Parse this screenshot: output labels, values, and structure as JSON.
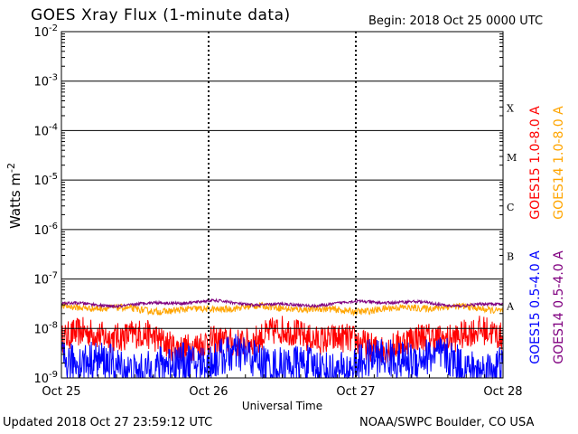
{
  "header": {
    "title": "GOES Xray Flux (1-minute data)",
    "begin": "Begin:  2018 Oct 25 0000 UTC"
  },
  "footer": {
    "updated": "Updated 2018 Oct 27 23:59:12 UTC",
    "credit": "NOAA/SWPC Boulder, CO USA"
  },
  "chart_data": {
    "type": "line",
    "title": "GOES Xray Flux (1-minute data)",
    "xlabel": "Universal Time",
    "ylabel": "Watts m",
    "ylabel_superscript": "-2",
    "yscale": "log",
    "ylim": [
      1e-09,
      0.01
    ],
    "y_ticks": [
      {
        "value": 0.01,
        "base": "10",
        "exp": "-2"
      },
      {
        "value": 0.001,
        "base": "10",
        "exp": "-3"
      },
      {
        "value": 0.0001,
        "base": "10",
        "exp": "-4"
      },
      {
        "value": 1e-05,
        "base": "10",
        "exp": "-5"
      },
      {
        "value": 1e-06,
        "base": "10",
        "exp": "-6"
      },
      {
        "value": 1e-07,
        "base": "10",
        "exp": "-7"
      },
      {
        "value": 1e-08,
        "base": "10",
        "exp": "-8"
      },
      {
        "value": 1e-09,
        "base": "10",
        "exp": "-9"
      }
    ],
    "x_ticks": [
      "Oct 25",
      "Oct 26",
      "Oct 27",
      "Oct 28"
    ],
    "xlim_days": [
      0,
      3
    ],
    "flare_classes": [
      {
        "label": "X",
        "value": 0.0001
      },
      {
        "label": "M",
        "value": 1e-05
      },
      {
        "label": "C",
        "value": 1e-06
      },
      {
        "label": "B",
        "value": 1e-07
      },
      {
        "label": "A",
        "value": 1e-08
      }
    ],
    "grid": true,
    "series": [
      {
        "name": "GOES15 1.0-8.0 A",
        "color": "#ff0000",
        "level": 6e-09,
        "spread_decades": 0.3
      },
      {
        "name": "GOES14 1.0-8.0 A",
        "color": "#ffa500",
        "level": 2.5e-08,
        "spread_decades": 0.07
      },
      {
        "name": "GOES15 0.5-4.0 A",
        "color": "#0000ff",
        "level": 2e-09,
        "spread_decades": 0.4
      },
      {
        "name": "GOES14 0.5-4.0 A",
        "color": "#800080",
        "level": 3.2e-08,
        "spread_decades": 0.03
      }
    ],
    "legend_position": "right"
  }
}
